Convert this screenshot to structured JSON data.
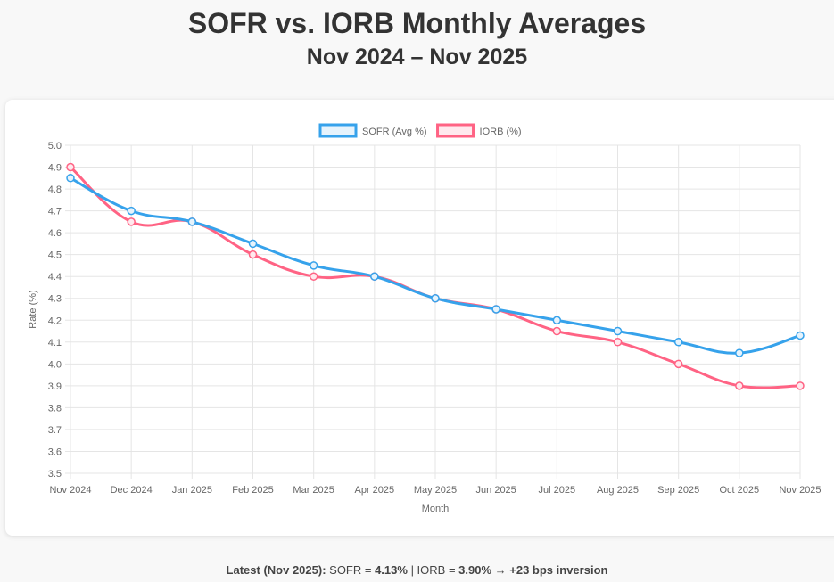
{
  "title": "SOFR vs. IORB Monthly Averages",
  "subtitle": "Nov 2024 – Nov 2025",
  "footer": {
    "label": "Latest (Nov 2025):",
    "sofr_label": " SOFR = ",
    "sofr_value": "4.13%",
    "sep": " | IORB = ",
    "iorb_value": "3.90%",
    "arrow": " → ",
    "inversion": "+23 bps inversion"
  },
  "chart_data": {
    "type": "line",
    "xlabel": "Month",
    "ylabel": "Rate (%)",
    "ylim": [
      3.5,
      5.0
    ],
    "yticks": [
      "3.5",
      "3.6",
      "3.7",
      "3.8",
      "3.9",
      "4.0",
      "4.1",
      "4.2",
      "4.3",
      "4.4",
      "4.5",
      "4.6",
      "4.7",
      "4.8",
      "4.9",
      "5.0"
    ],
    "categories": [
      "Nov 2024",
      "Dec 2024",
      "Jan 2025",
      "Feb 2025",
      "Mar 2025",
      "Apr 2025",
      "May 2025",
      "Jun 2025",
      "Jul 2025",
      "Aug 2025",
      "Sep 2025",
      "Oct 2025",
      "Nov 2025"
    ],
    "legend": "top",
    "grid": true,
    "series": [
      {
        "name": "SOFR (Avg %)",
        "color": "#36a2eb",
        "fill": "#e6f3fc",
        "values": [
          4.85,
          4.7,
          4.65,
          4.55,
          4.45,
          4.4,
          4.3,
          4.25,
          4.2,
          4.15,
          4.1,
          4.05,
          4.13
        ]
      },
      {
        "name": "IORB (%)",
        "color": "#ff6384",
        "fill": "#ffe9ee",
        "values": [
          4.9,
          4.65,
          4.65,
          4.5,
          4.4,
          4.4,
          4.3,
          4.25,
          4.15,
          4.1,
          4.0,
          3.9,
          3.9
        ]
      }
    ]
  }
}
